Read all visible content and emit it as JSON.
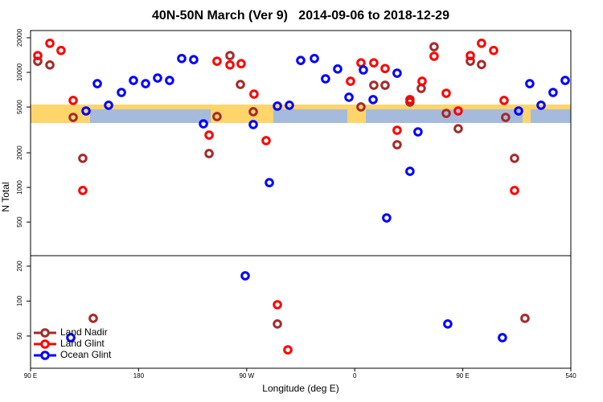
{
  "chart_data": [
    {
      "type": "scatter",
      "title": "40N-50N March (Ver 9)   2014-09-06 to 2018-12-29",
      "ylabel": "N Total",
      "yscale": "log",
      "xlim": [
        90,
        540
      ],
      "ylim": [
        255,
        23100
      ],
      "yticks": [
        500,
        1000,
        2000,
        5000,
        10000,
        20000
      ],
      "series": [
        {
          "color": "#a52a2a",
          "x": [
            96.0,
            106.1,
            125.5,
            133.5,
            238.7,
            245.3,
            256.1,
            264.8,
            275.5,
            365.2,
            375.9,
            385.3,
            395.3,
            406.0,
            415.4,
            426.1,
            436.2,
            446.2,
            456.3,
            465.6,
            485.7,
            493.1
          ],
          "values": [
            12500,
            11600,
            4060,
            1790,
            1970,
            4130,
            14000,
            7850,
            4550,
            5010,
            7730,
            7730,
            2350,
            5520,
            7250,
            16700,
            4400,
            3240,
            12500,
            11700,
            4060,
            1790
          ]
        },
        {
          "color": "#ff0000",
          "x": [
            96.0,
            106.1,
            115.4,
            125.5,
            133.5,
            238.7,
            245.3,
            256.1,
            265.4,
            276.1,
            286.2,
            356.5,
            365.2,
            375.9,
            385.3,
            395.3,
            406.0,
            416.1,
            426.1,
            436.2,
            446.2,
            456.3,
            465.6,
            475.7,
            484.4,
            493.1
          ],
          "values": [
            14000,
            17900,
            15500,
            5700,
            940,
            2850,
            12500,
            11600,
            11900,
            6470,
            2550,
            8370,
            12100,
            12100,
            10800,
            3140,
            5800,
            8370,
            13800,
            6580,
            4620,
            14000,
            17900,
            15500,
            5700,
            940
          ]
        },
        {
          "color": "#0000ff",
          "x": [
            136.2,
            145.6,
            155.0,
            165.7,
            175.7,
            185.8,
            195.8,
            205.8,
            215.9,
            225.9,
            234.0,
            275.5,
            288.9,
            295.6,
            305.6,
            315.0,
            326.4,
            335.7,
            345.8,
            355.2,
            367.2,
            375.3,
            386.6,
            395.3,
            406.0,
            412.7,
            496.5,
            505.8,
            515.2,
            525.2,
            535.3
          ],
          "values": [
            4620,
            7980,
            5180,
            6690,
            8510,
            7980,
            8930,
            8510,
            13200,
            12900,
            3570,
            3520,
            1100,
            5090,
            5180,
            12700,
            13200,
            8790,
            10700,
            6080,
            10500,
            5800,
            543,
            9840,
            1380,
            3040,
            4620,
            7980,
            5180,
            6690,
            8510
          ]
        }
      ]
    },
    {
      "type": "scatter",
      "xlabel": "Longitude (deg E)",
      "yscale": "log",
      "legend": "lower left",
      "xlim": [
        90,
        540
      ],
      "ylim": [
        26.4,
        246
      ],
      "yticks": [
        50,
        100,
        200
      ],
      "xticks": [
        {
          "value": 90,
          "label": "90 E"
        },
        180,
        {
          "value": 270,
          "label": "90 W"
        },
        {
          "value": 360,
          "label": "0"
        },
        {
          "value": 450,
          "label": "90 E"
        },
        540
      ],
      "series": [
        {
          "name": "Land Nadir",
          "color": "#a52a2a",
          "x": [
            142.2,
            295.6,
            501.8
          ],
          "values": [
            71,
            63.5,
            71
          ]
        },
        {
          "name": "Land Glint",
          "color": "#ff0000",
          "x": [
            295.6,
            304.3
          ],
          "values": [
            93,
            38
          ]
        },
        {
          "name": "Ocean Glint",
          "color": "#0000ff",
          "x": [
            123.5,
            268.8,
            437.5,
            483.0
          ],
          "values": [
            48.4,
            165,
            63.5,
            48.4
          ]
        }
      ]
    }
  ]
}
